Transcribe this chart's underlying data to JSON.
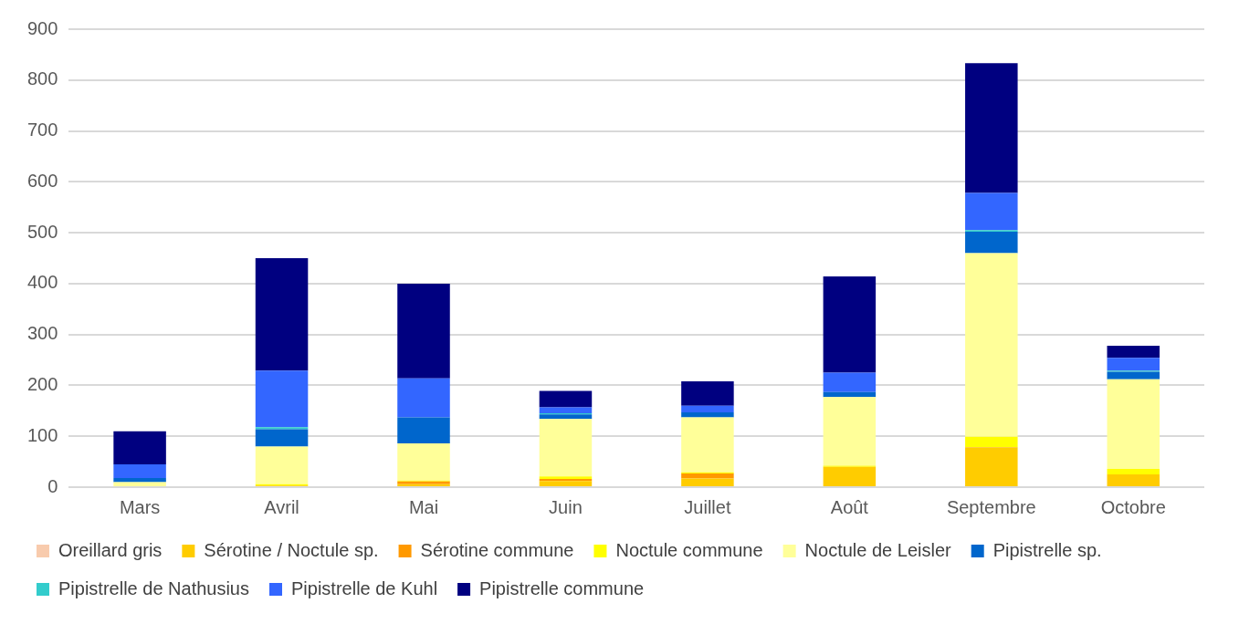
{
  "chart_data": {
    "type": "bar",
    "stacked": true,
    "categories": [
      "Mars",
      "Avril",
      "Mai",
      "Juin",
      "Juillet",
      "Août",
      "Septembre",
      "Octobre"
    ],
    "series": [
      {
        "name": "Oreillard gris",
        "color": "#f8cbad",
        "values": [
          0,
          0,
          0,
          0,
          0,
          0,
          0,
          0
        ]
      },
      {
        "name": "Sérotine / Noctule sp.",
        "color": "#ffcc00",
        "values": [
          0,
          3,
          6,
          12,
          17,
          40,
          77,
          25
        ]
      },
      {
        "name": "Sérotine commune",
        "color": "#ff9900",
        "values": [
          0,
          0,
          5,
          4,
          10,
          0,
          1,
          0
        ]
      },
      {
        "name": "Noctule commune",
        "color": "#ffff00",
        "values": [
          0,
          3,
          2,
          5,
          2,
          2,
          21,
          11
        ]
      },
      {
        "name": "Noctule de Leisler",
        "color": "#ffff99",
        "values": [
          10,
          74,
          73,
          113,
          108,
          135,
          361,
          176
        ]
      },
      {
        "name": "Pipistrelle sp.",
        "color": "#0066cc",
        "values": [
          8,
          34,
          51,
          9,
          10,
          10,
          42,
          15
        ]
      },
      {
        "name": "Pipistrelle de Nathusius",
        "color": "#33cccc",
        "values": [
          0,
          4,
          0,
          2,
          0,
          0,
          3,
          2
        ]
      },
      {
        "name": "Pipistrelle de Kuhl",
        "color": "#3366ff",
        "values": [
          27,
          111,
          77,
          12,
          13,
          38,
          73,
          25
        ]
      },
      {
        "name": "Pipistrelle commune",
        "color": "#000080",
        "values": [
          65,
          221,
          186,
          32,
          48,
          189,
          255,
          24
        ]
      }
    ],
    "ylim": [
      0,
      900
    ],
    "yticks": [
      0,
      100,
      200,
      300,
      400,
      500,
      600,
      700,
      800,
      900
    ],
    "grid": "y",
    "legend": "bottom"
  }
}
